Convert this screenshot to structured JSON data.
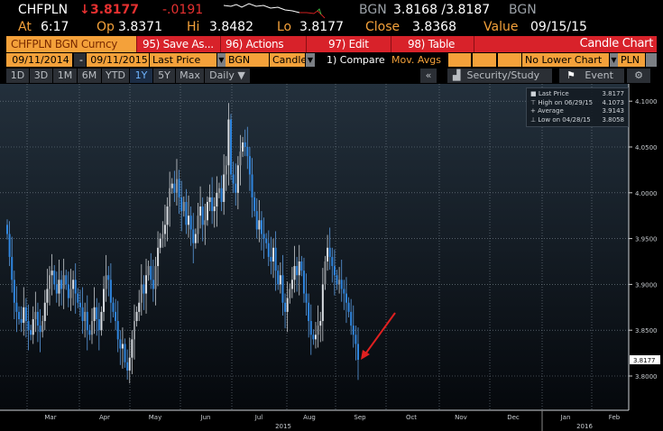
{
  "header": {
    "ticker": "CHFPLN",
    "direction_icon": "down-arrow-icon",
    "last": "3.8177",
    "change": "-.0191",
    "source1": "BGN",
    "bid_ask": "3.8168 /3.8187",
    "source2": "BGN",
    "at_label": "At",
    "at": "6:17",
    "op_label": "Op",
    "op": "3.8371",
    "hi_label": "Hi",
    "hi": "3.8482",
    "lo_label": "Lo",
    "lo": "3.8177",
    "close_label": "Close",
    "close": "3.8368",
    "value_label": "Value",
    "value": "09/15/15"
  },
  "menu": {
    "security": "CHFPLN BGN Curncy",
    "save": "95) Save As...",
    "actions": "96) Actions",
    "edit": "97) Edit",
    "table": "98) Table",
    "chart_type": "Candle Chart"
  },
  "fields": {
    "start": "09/11/2014",
    "dash": "-",
    "end": "09/11/2015",
    "price": "Last Price",
    "source": "BGN",
    "style": "Candle",
    "compare": "1) Compare",
    "mov": "Mov. Avgs",
    "lower": "No Lower Chart",
    "currency": "PLN"
  },
  "toolbar": {
    "ranges": [
      "1D",
      "3D",
      "1M",
      "6M",
      "YTD",
      "1Y",
      "5Y",
      "Max"
    ],
    "selected": "1Y",
    "period": "Daily ▼",
    "collapse": "«",
    "study": "Security/Study",
    "event": "Event"
  },
  "legend": {
    "last_label": "Last Price",
    "last": "3.8177",
    "high_label": "High on 06/29/15",
    "high": "4.1073",
    "avg_label": "Average",
    "avg": "3.9143",
    "low_label": "Low on 04/28/15",
    "low": "3.8058"
  },
  "colors": {
    "up": "#d9dde2",
    "down": "#2f86e0",
    "accent": "#f4a13a",
    "menu": "#d8222a",
    "arrow": "#e02020"
  },
  "chart_data": {
    "type": "candlestick",
    "x_range": [
      "2015-02-11",
      "2015-09-11"
    ],
    "ylim": [
      3.78,
      4.115
    ],
    "y_ticks": [
      "4.1000",
      "4.0500",
      "4.0000",
      "3.9500",
      "3.9000",
      "3.8500",
      "3.8000"
    ],
    "last_label": "3.8177",
    "x_ticks": [
      "Mar",
      "Apr",
      "May",
      "Jun",
      "Jul",
      "Aug",
      "Sep",
      "Oct",
      "Nov",
      "Dec",
      "Jan",
      "Feb"
    ],
    "year_labels": [
      "2015",
      "2016"
    ],
    "grid": true,
    "closes": [
      3.955,
      3.93,
      3.905,
      3.88,
      3.87,
      3.862,
      3.858,
      3.875,
      3.86,
      3.85,
      3.845,
      3.862,
      3.87,
      3.855,
      3.848,
      3.86,
      3.88,
      3.895,
      3.91,
      3.915,
      3.9,
      3.89,
      3.905,
      3.895,
      3.91,
      3.9,
      3.885,
      3.895,
      3.905,
      3.89,
      3.88,
      3.875,
      3.86,
      3.87,
      3.85,
      3.845,
      3.86,
      3.875,
      3.862,
      3.85,
      3.87,
      3.895,
      3.91,
      3.905,
      3.88,
      3.87,
      3.86,
      3.84,
      3.83,
      3.835,
      3.815,
      3.806,
      3.82,
      3.84,
      3.86,
      3.87,
      3.88,
      3.9,
      3.89,
      3.91,
      3.92,
      3.905,
      3.895,
      3.92,
      3.94,
      3.95,
      3.955,
      3.965,
      3.985,
      4.005,
      4.01,
      4.0,
      4.015,
      3.995,
      3.98,
      3.99,
      3.965,
      3.975,
      3.96,
      3.945,
      3.955,
      3.975,
      3.985,
      3.965,
      3.97,
      3.99,
      3.995,
      3.98,
      3.985,
      4.0,
      4.005,
      3.99,
      4.02,
      4.03,
      4.08,
      4.02,
      4.01,
      4.0,
      4.03,
      4.045,
      4.055,
      4.05,
      4.04,
      4.02,
      3.995,
      3.98,
      3.96,
      3.97,
      3.955,
      3.95,
      3.945,
      3.93,
      3.925,
      3.94,
      3.915,
      3.9,
      3.91,
      3.88,
      3.87,
      3.885,
      3.895,
      3.905,
      3.92,
      3.91,
      3.925,
      3.915,
      3.89,
      3.88,
      3.86,
      3.845,
      3.84,
      3.845,
      3.855,
      3.86,
      3.9,
      3.925,
      3.94,
      3.93,
      3.92,
      3.91,
      3.9,
      3.905,
      3.895,
      3.89,
      3.88,
      3.87,
      3.855,
      3.845,
      3.835,
      3.8177
    ]
  }
}
